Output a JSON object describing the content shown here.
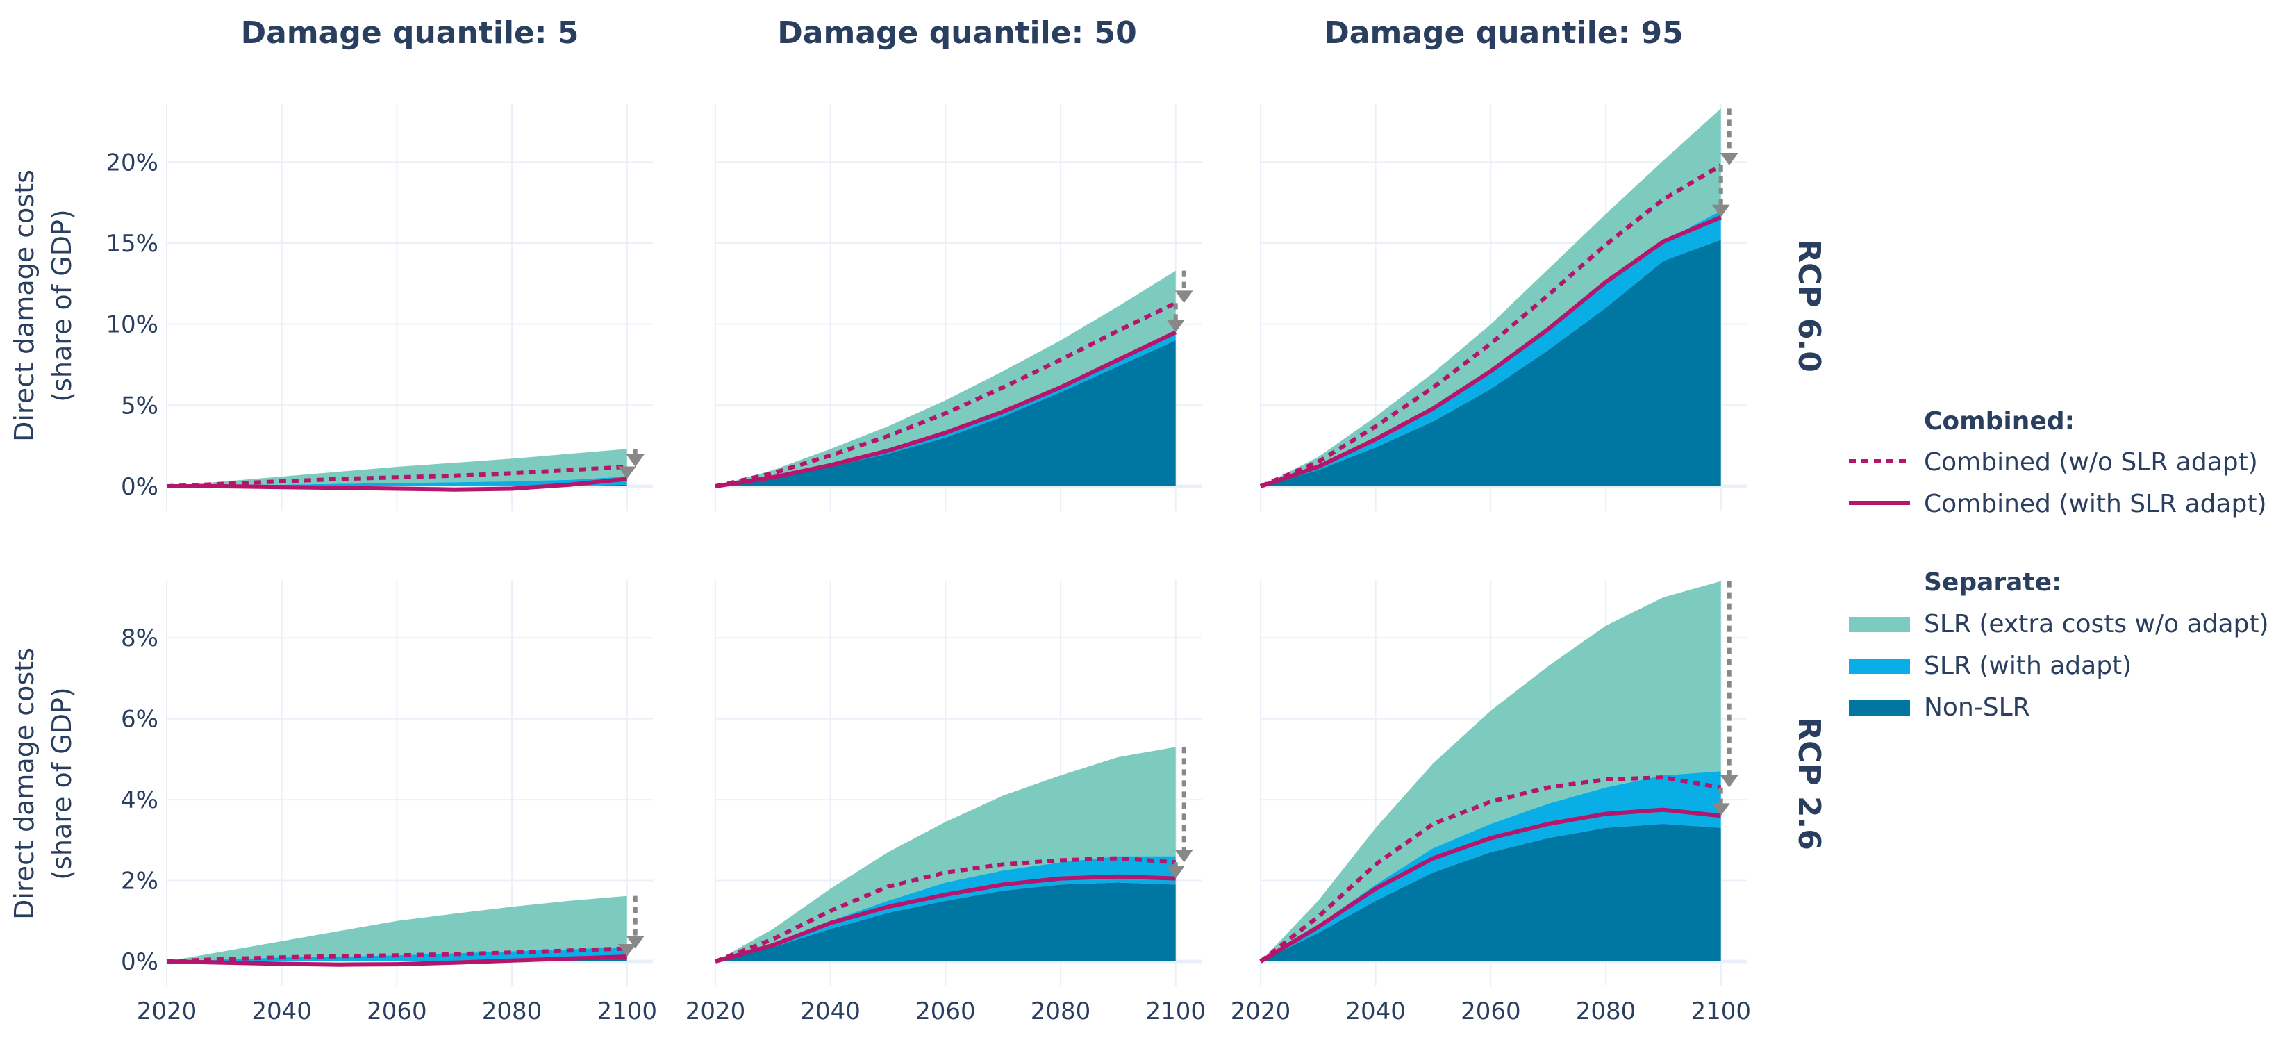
{
  "colors": {
    "slr_extra": "#7ccbbe",
    "slr_adapt": "#0aaee7",
    "non_slr": "#0077a3",
    "combined": "#b5166b",
    "arrow": "#888888",
    "grid": "#ebf0f8",
    "text": "#2a3f5f"
  },
  "titles": {
    "col1": "Damage quantile: 5",
    "col2": "Damage quantile: 50",
    "col3": "Damage quantile: 95",
    "row1": "RCP 6.0",
    "row2": "RCP 2.6",
    "ylabel_line1": "Direct damage costs",
    "ylabel_line2": "(share of GDP)"
  },
  "legend": {
    "group1_title": "Combined:",
    "combined_wo": "Combined (w/o SLR adapt)",
    "combined_with": "Combined (with SLR adapt)",
    "group2_title": "Separate:",
    "slr_extra": "SLR (extra costs w/o adapt)",
    "slr_adapt": "SLR (with adapt)",
    "non_slr": "Non-SLR"
  },
  "axes": {
    "x_ticks": [
      "2020",
      "2040",
      "2060",
      "2080",
      "2100"
    ],
    "y_ticks_row1": [
      "0%",
      "5%",
      "10%",
      "15%",
      "20%"
    ],
    "y_ticks_row2": [
      "0%",
      "2%",
      "4%",
      "6%",
      "8%"
    ]
  },
  "chart_data": {
    "type": "area",
    "grid": true,
    "legend_position": "right",
    "x": [
      2020,
      2030,
      2040,
      2050,
      2060,
      2070,
      2080,
      2090,
      2100
    ],
    "rows": [
      {
        "name": "RCP 6.0",
        "ylim": [
          0,
          24
        ],
        "panels": [
          {
            "quantile": 5,
            "non_slr": [
              0,
              -0.05,
              -0.1,
              -0.15,
              -0.2,
              -0.25,
              -0.2,
              -0.1,
              0.1
            ],
            "slr_adapt_top": [
              0,
              0.05,
              0.1,
              0.15,
              0.2,
              0.25,
              0.3,
              0.4,
              0.6
            ],
            "slr_extra_top": [
              0,
              0.3,
              0.6,
              0.9,
              1.2,
              1.45,
              1.7,
              2.0,
              2.3
            ],
            "combined_wo": [
              0,
              0.15,
              0.3,
              0.45,
              0.55,
              0.65,
              0.8,
              1.0,
              1.2
            ],
            "combined_with": [
              0,
              0,
              -0.05,
              -0.1,
              -0.15,
              -0.2,
              -0.15,
              0.1,
              0.45
            ],
            "arrow_from": 2.3,
            "arrow_to": 1.2,
            "arrow2_from": 1.2,
            "arrow2_to": 0.45
          },
          {
            "quantile": 50,
            "non_slr": [
              0,
              0.5,
              1.2,
              2.0,
              3.0,
              4.3,
              5.8,
              7.4,
              9.0
            ],
            "slr_adapt_top": [
              0,
              0.55,
              1.3,
              2.2,
              3.3,
              4.6,
              6.1,
              7.8,
              9.5
            ],
            "slr_extra_top": [
              0,
              1.0,
              2.3,
              3.7,
              5.3,
              7.1,
              9.0,
              11.1,
              13.3
            ],
            "combined_wo": [
              0,
              0.8,
              1.9,
              3.1,
              4.5,
              6.1,
              7.8,
              9.6,
              11.3
            ],
            "combined_with": [
              0,
              0.55,
              1.3,
              2.2,
              3.3,
              4.6,
              6.1,
              7.8,
              9.5
            ],
            "arrow_from": 13.3,
            "arrow_to": 11.3,
            "arrow2_from": 11.3,
            "arrow2_to": 9.5
          },
          {
            "quantile": 95,
            "non_slr": [
              0,
              1.0,
              2.4,
              4.0,
              6.0,
              8.4,
              11.0,
              13.9,
              15.2
            ],
            "slr_adapt_top": [
              0,
              1.2,
              2.9,
              4.8,
              7.1,
              9.7,
              12.6,
              15.1,
              17.0
            ],
            "slr_extra_top": [
              0,
              1.8,
              4.3,
              7.0,
              10.0,
              13.4,
              16.8,
              20.1,
              23.3
            ],
            "combined_wo": [
              0,
              1.5,
              3.7,
              6.1,
              8.8,
              11.8,
              14.9,
              17.7,
              19.8
            ],
            "combined_with": [
              0,
              1.2,
              2.9,
              4.8,
              7.1,
              9.7,
              12.6,
              15.1,
              16.6
            ],
            "arrow_from": 23.3,
            "arrow_to": 19.8,
            "arrow2_from": 19.8,
            "arrow2_to": 16.6
          }
        ]
      },
      {
        "name": "RCP 2.6",
        "ylim": [
          0,
          9.6
        ],
        "panels": [
          {
            "quantile": 5,
            "non_slr": [
              0,
              -0.05,
              -0.1,
              -0.12,
              -0.1,
              -0.05,
              0.0,
              0.05,
              0.1
            ],
            "slr_adapt_top": [
              0,
              0.05,
              0.1,
              0.12,
              0.15,
              0.2,
              0.25,
              0.3,
              0.35
            ],
            "slr_extra_top": [
              0,
              0.25,
              0.5,
              0.75,
              1.0,
              1.18,
              1.35,
              1.5,
              1.62
            ],
            "combined_wo": [
              0,
              0.06,
              0.1,
              0.13,
              0.15,
              0.18,
              0.22,
              0.27,
              0.32
            ],
            "combined_with": [
              0,
              -0.03,
              -0.06,
              -0.08,
              -0.07,
              -0.03,
              0.02,
              0.07,
              0.12
            ],
            "arrow_from": 1.62,
            "arrow_to": 0.32,
            "arrow2_from": 0.32,
            "arrow2_to": 0.12
          },
          {
            "quantile": 50,
            "non_slr": [
              0,
              0.35,
              0.8,
              1.2,
              1.5,
              1.75,
              1.9,
              1.95,
              1.9
            ],
            "slr_adapt_top": [
              0,
              0.45,
              1.0,
              1.5,
              1.95,
              2.25,
              2.45,
              2.6,
              2.6
            ],
            "slr_extra_top": [
              0,
              0.8,
              1.8,
              2.7,
              3.45,
              4.1,
              4.6,
              5.05,
              5.3
            ],
            "combined_wo": [
              0,
              0.55,
              1.25,
              1.85,
              2.2,
              2.4,
              2.5,
              2.55,
              2.45
            ],
            "combined_with": [
              0,
              0.4,
              0.95,
              1.35,
              1.65,
              1.9,
              2.05,
              2.1,
              2.05
            ],
            "arrow_from": 5.3,
            "arrow_to": 2.45,
            "arrow2_from": 2.45,
            "arrow2_to": 2.05
          },
          {
            "quantile": 95,
            "non_slr": [
              0,
              0.7,
              1.5,
              2.2,
              2.7,
              3.05,
              3.3,
              3.4,
              3.3
            ],
            "slr_adapt_top": [
              0,
              0.9,
              1.9,
              2.8,
              3.4,
              3.9,
              4.3,
              4.6,
              4.7
            ],
            "slr_extra_top": [
              0,
              1.5,
              3.3,
              4.9,
              6.2,
              7.3,
              8.3,
              9.0,
              9.4
            ],
            "combined_wo": [
              0,
              1.1,
              2.4,
              3.4,
              3.95,
              4.3,
              4.5,
              4.55,
              4.3
            ],
            "combined_with": [
              0,
              0.85,
              1.8,
              2.55,
              3.05,
              3.4,
              3.65,
              3.75,
              3.6
            ],
            "arrow_from": 9.4,
            "arrow_to": 4.3,
            "arrow2_from": 4.3,
            "arrow2_to": 3.6
          }
        ]
      }
    ]
  }
}
